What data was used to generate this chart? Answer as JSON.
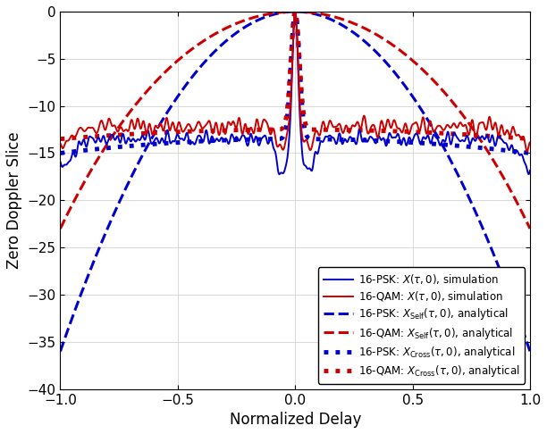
{
  "xlabel": "Normalized Delay",
  "ylabel": "Zero Doppler Slice",
  "xlim": [
    -1,
    1
  ],
  "ylim": [
    -40,
    0
  ],
  "yticks": [
    0,
    -5,
    -10,
    -15,
    -20,
    -25,
    -30,
    -35,
    -40
  ],
  "xticks": [
    -1,
    -0.5,
    0,
    0.5,
    1
  ],
  "blue": "#0000CC",
  "red": "#CC0000",
  "figsize": [
    6.12,
    4.86
  ],
  "dpi": 100,
  "lw_solid": 1.4,
  "lw_dash": 2.2,
  "lw_dot": 2.2,
  "N": 64,
  "psk_self_edge": -36.0,
  "qam_self_edge": -20.0,
  "psk_cross_level": -13.5,
  "qam_cross_level": -12.5,
  "psk_sim_base": -13.5,
  "qam_sim_base": -12.2,
  "noise_seed": 42
}
